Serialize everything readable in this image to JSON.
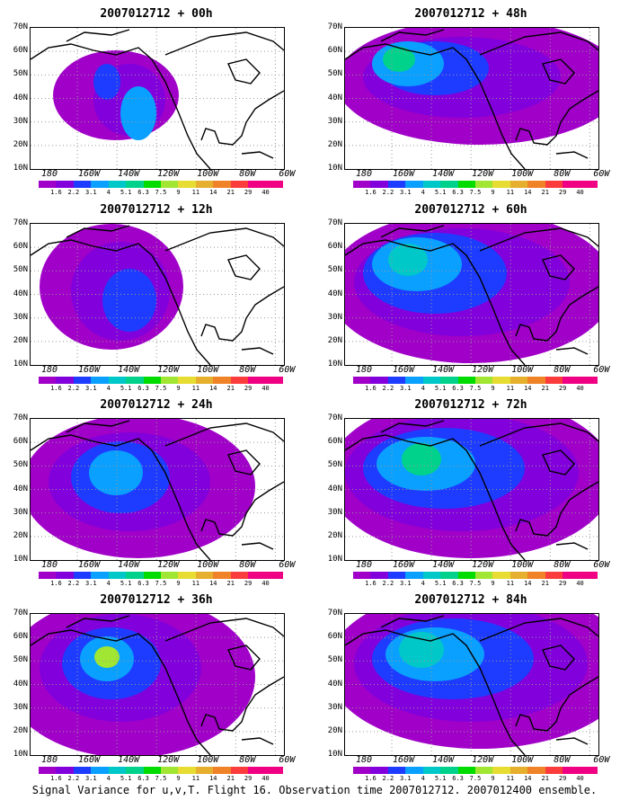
{
  "panels": [
    {
      "title": "2007012712 + 00h"
    },
    {
      "title": "2007012712 + 48h"
    },
    {
      "title": "2007012712 + 12h"
    },
    {
      "title": "2007012712 + 60h"
    },
    {
      "title": "2007012712 + 24h"
    },
    {
      "title": "2007012712 + 72h"
    },
    {
      "title": "2007012712 + 36h"
    },
    {
      "title": "2007012712 + 84h"
    }
  ],
  "y_labels": [
    "70N",
    "60N",
    "50N",
    "40N",
    "30N",
    "20N",
    "10N"
  ],
  "x_labels": [
    "180",
    "160W",
    "140W",
    "120W",
    "100W",
    "80W",
    "60W"
  ],
  "colorbar": {
    "labels": [
      "1.6",
      "2.2",
      "3.1",
      "4",
      "5.1",
      "6.3",
      "7.5",
      "9",
      "11",
      "14",
      "21",
      "29",
      "40"
    ],
    "colors": [
      "#a000c8",
      "#8200dc",
      "#1e3cff",
      "#0aa0ff",
      "#00c8c8",
      "#00d28c",
      "#00dc00",
      "#a0e632",
      "#e6dc32",
      "#e6af2d",
      "#f08228",
      "#fa3c3c",
      "#f00082"
    ]
  },
  "caption": "Signal Variance for u,v,T. Flight 16. Observation time 2007012712. 2007012400 ensemble."
}
